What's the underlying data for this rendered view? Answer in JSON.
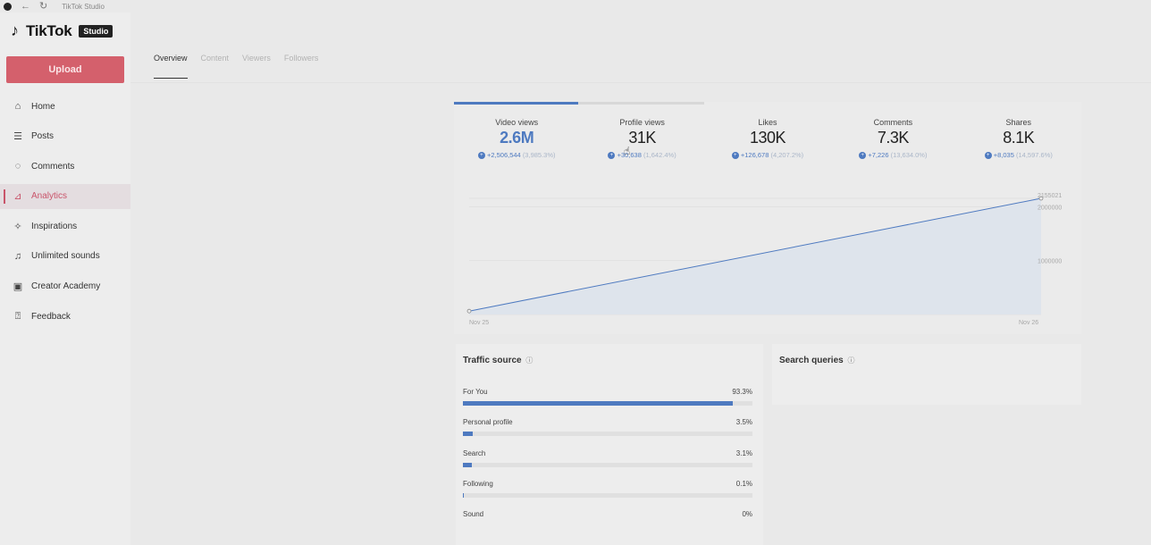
{
  "window": {
    "title": "TikTok Studio"
  },
  "brand": {
    "name": "TikTok",
    "badge": "Studio"
  },
  "sidebar": {
    "upload_label": "Upload",
    "items": [
      {
        "label": "Home",
        "icon": "home-icon"
      },
      {
        "label": "Posts",
        "icon": "list-icon"
      },
      {
        "label": "Comments",
        "icon": "comment-icon"
      },
      {
        "label": "Analytics",
        "icon": "analytics-icon",
        "active": true
      },
      {
        "label": "Inspirations",
        "icon": "lightbulb-icon"
      },
      {
        "label": "Unlimited sounds",
        "icon": "music-icon"
      },
      {
        "label": "Creator Academy",
        "icon": "academy-icon"
      },
      {
        "label": "Feedback",
        "icon": "feedback-icon"
      }
    ]
  },
  "tabs": [
    {
      "label": "Overview",
      "active": true
    },
    {
      "label": "Content"
    },
    {
      "label": "Viewers"
    },
    {
      "label": "Followers"
    }
  ],
  "stats": [
    {
      "label": "Video views",
      "value": "2.6M",
      "delta": "+2,506,544",
      "pct": "(3,985.3%)"
    },
    {
      "label": "Profile views",
      "value": "31K",
      "delta": "+30,638",
      "pct": "(1,642.4%)"
    },
    {
      "label": "Likes",
      "value": "130K",
      "delta": "+126,678",
      "pct": "(4,207.2%)"
    },
    {
      "label": "Comments",
      "value": "7.3K",
      "delta": "+7,226",
      "pct": "(13,634.0%)"
    },
    {
      "label": "Shares",
      "value": "8.1K",
      "delta": "+8,035",
      "pct": "(14,597.6%)"
    }
  ],
  "chart_data": {
    "type": "area",
    "x": [
      "Nov 25",
      "Nov 26"
    ],
    "values": [
      62900,
      2155021
    ],
    "ytick_labels": [
      "2155021",
      "2000000",
      "1000000"
    ],
    "yticks": [
      2155021,
      2000000,
      1000000
    ],
    "ylim": [
      0,
      2155021
    ],
    "xlabel": "",
    "ylabel": "",
    "grid": true,
    "line_color": "#4e7ac0",
    "fill_color": "#dde3ec"
  },
  "traffic": {
    "title": "Traffic source",
    "rows": [
      {
        "label": "For You",
        "value": "93.3%",
        "pct": 93.3
      },
      {
        "label": "Personal profile",
        "value": "3.5%",
        "pct": 3.5
      },
      {
        "label": "Search",
        "value": "3.1%",
        "pct": 3.1
      },
      {
        "label": "Following",
        "value": "0.1%",
        "pct": 0.1
      },
      {
        "label": "Sound",
        "value": "0%",
        "pct": 0
      }
    ]
  },
  "search_queries": {
    "title": "Search queries"
  },
  "colors": {
    "accent": "#4e7ac0",
    "brand": "#d4606c"
  }
}
